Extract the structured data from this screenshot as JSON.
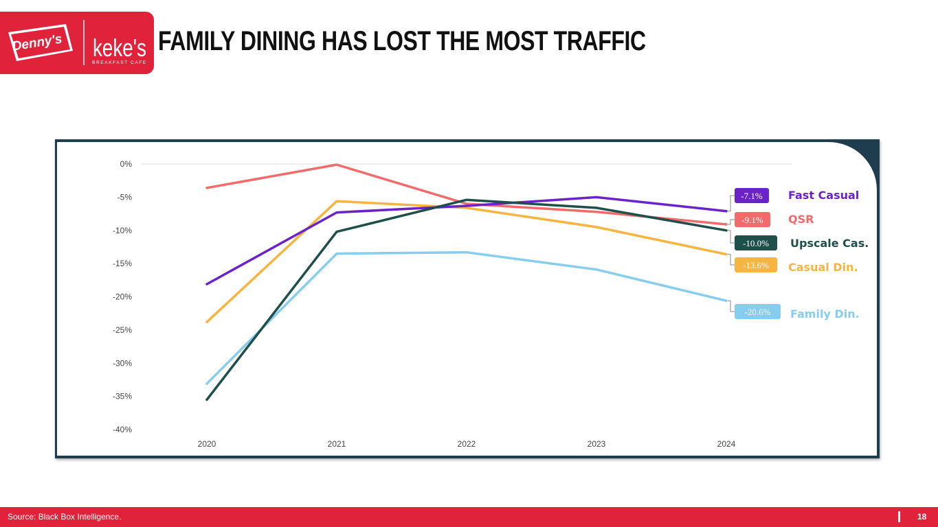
{
  "header": {
    "title": "FAMILY DINING HAS LOST THE MOST TRAFFIC",
    "logos": [
      {
        "name": "dennys-logo",
        "text": "Denny's"
      },
      {
        "name": "kekes-logo",
        "text": "keke's",
        "subtext": "BREAKFAST CAFE"
      }
    ],
    "brand_color": "#e0223a"
  },
  "footer": {
    "source": "Source: Black Box Intelligence.",
    "page_number": "18"
  },
  "chart_data": {
    "type": "line",
    "title": "",
    "xlabel": "",
    "ylabel": "",
    "categories": [
      "2020",
      "2021",
      "2022",
      "2023",
      "2024"
    ],
    "ylim": [
      -40,
      0
    ],
    "yticks": [
      "0%",
      "-5%",
      "-10%",
      "-15%",
      "-20%",
      "-25%",
      "-30%",
      "-35%",
      "-40%"
    ],
    "grid": "zero line only",
    "legend": "right",
    "series": [
      {
        "name": "Fast Casual",
        "color": "#6a22c9",
        "end_label": "-7.1%",
        "values": [
          -18.1,
          -7.3,
          -6.3,
          -5.0,
          -7.1
        ]
      },
      {
        "name": "QSR",
        "color": "#f26a6a",
        "end_label": "-9.1%",
        "values": [
          -3.6,
          -0.1,
          -6.0,
          -7.2,
          -9.1
        ]
      },
      {
        "name": "Upscale Cas.",
        "color": "#1f4f4a",
        "end_label": "-10.0%",
        "values": [
          -35.5,
          -10.2,
          -5.4,
          -6.6,
          -10.0
        ]
      },
      {
        "name": "Casual Din.",
        "color": "#f5b540",
        "end_label": "-13.6%",
        "values": [
          -23.8,
          -5.6,
          -6.6,
          -9.5,
          -13.6
        ]
      },
      {
        "name": "Family Din.",
        "color": "#86cdf0",
        "end_label": "-20.6%",
        "values": [
          -33.1,
          -13.5,
          -13.3,
          -15.9,
          -20.6
        ]
      }
    ]
  }
}
